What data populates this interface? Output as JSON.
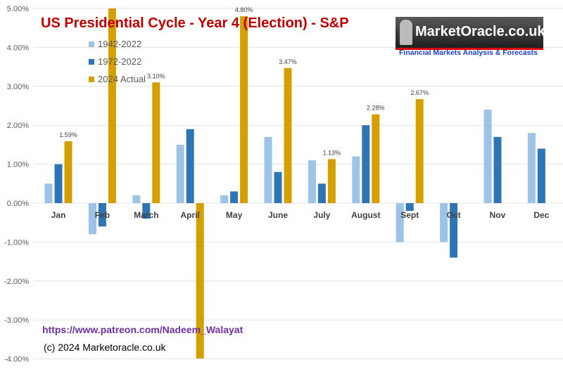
{
  "chart_data": {
    "type": "bar",
    "title": "US Presidential Cycle - Year 4 (Election) - S&P",
    "categories": [
      "Jan",
      "Feb",
      "March",
      "April",
      "May",
      "June",
      "July",
      "August",
      "Sept",
      "Oct",
      "Nov",
      "Dec"
    ],
    "series": [
      {
        "name": "1942-2022",
        "color": "#9dc3e6",
        "values": [
          0.5,
          -0.8,
          0.2,
          1.5,
          0.2,
          1.7,
          1.1,
          1.2,
          -1.0,
          -1.0,
          2.4,
          1.8
        ]
      },
      {
        "name": "1972-2022",
        "color": "#2e75b6",
        "values": [
          1.0,
          -0.6,
          -0.4,
          1.9,
          0.3,
          0.8,
          0.5,
          2.0,
          -0.2,
          -1.4,
          1.7,
          1.4
        ]
      },
      {
        "name": "2024 Actual",
        "color": "#d4a000",
        "values": [
          1.59,
          5.2,
          3.1,
          -4.2,
          4.8,
          3.47,
          1.13,
          2.28,
          2.67,
          null,
          null,
          null
        ],
        "data_labels": [
          "1.59%",
          null,
          "3.10%",
          null,
          "4.80%",
          "3.47%",
          "1.13%",
          "2.28%",
          "2.67%",
          null,
          null,
          null
        ]
      }
    ],
    "ylim": [
      -4,
      5
    ],
    "yticks": [
      "5.00%",
      "4.00%",
      "3.00%",
      "2.00%",
      "1.00%",
      "0.00%",
      "-1.00%",
      "-2.00%",
      "-3.00%",
      "-4.00%"
    ],
    "grid": true,
    "legend": "top-left"
  },
  "branding": {
    "logo_text": "MarketOracle.co.uk",
    "tagline": "Financial Markets Analysis & Forecasts",
    "patreon": "https://www.patreon.com/Nadeem_Walayat",
    "copyright": "(c) 2024 Marketoracle.co.uk"
  }
}
